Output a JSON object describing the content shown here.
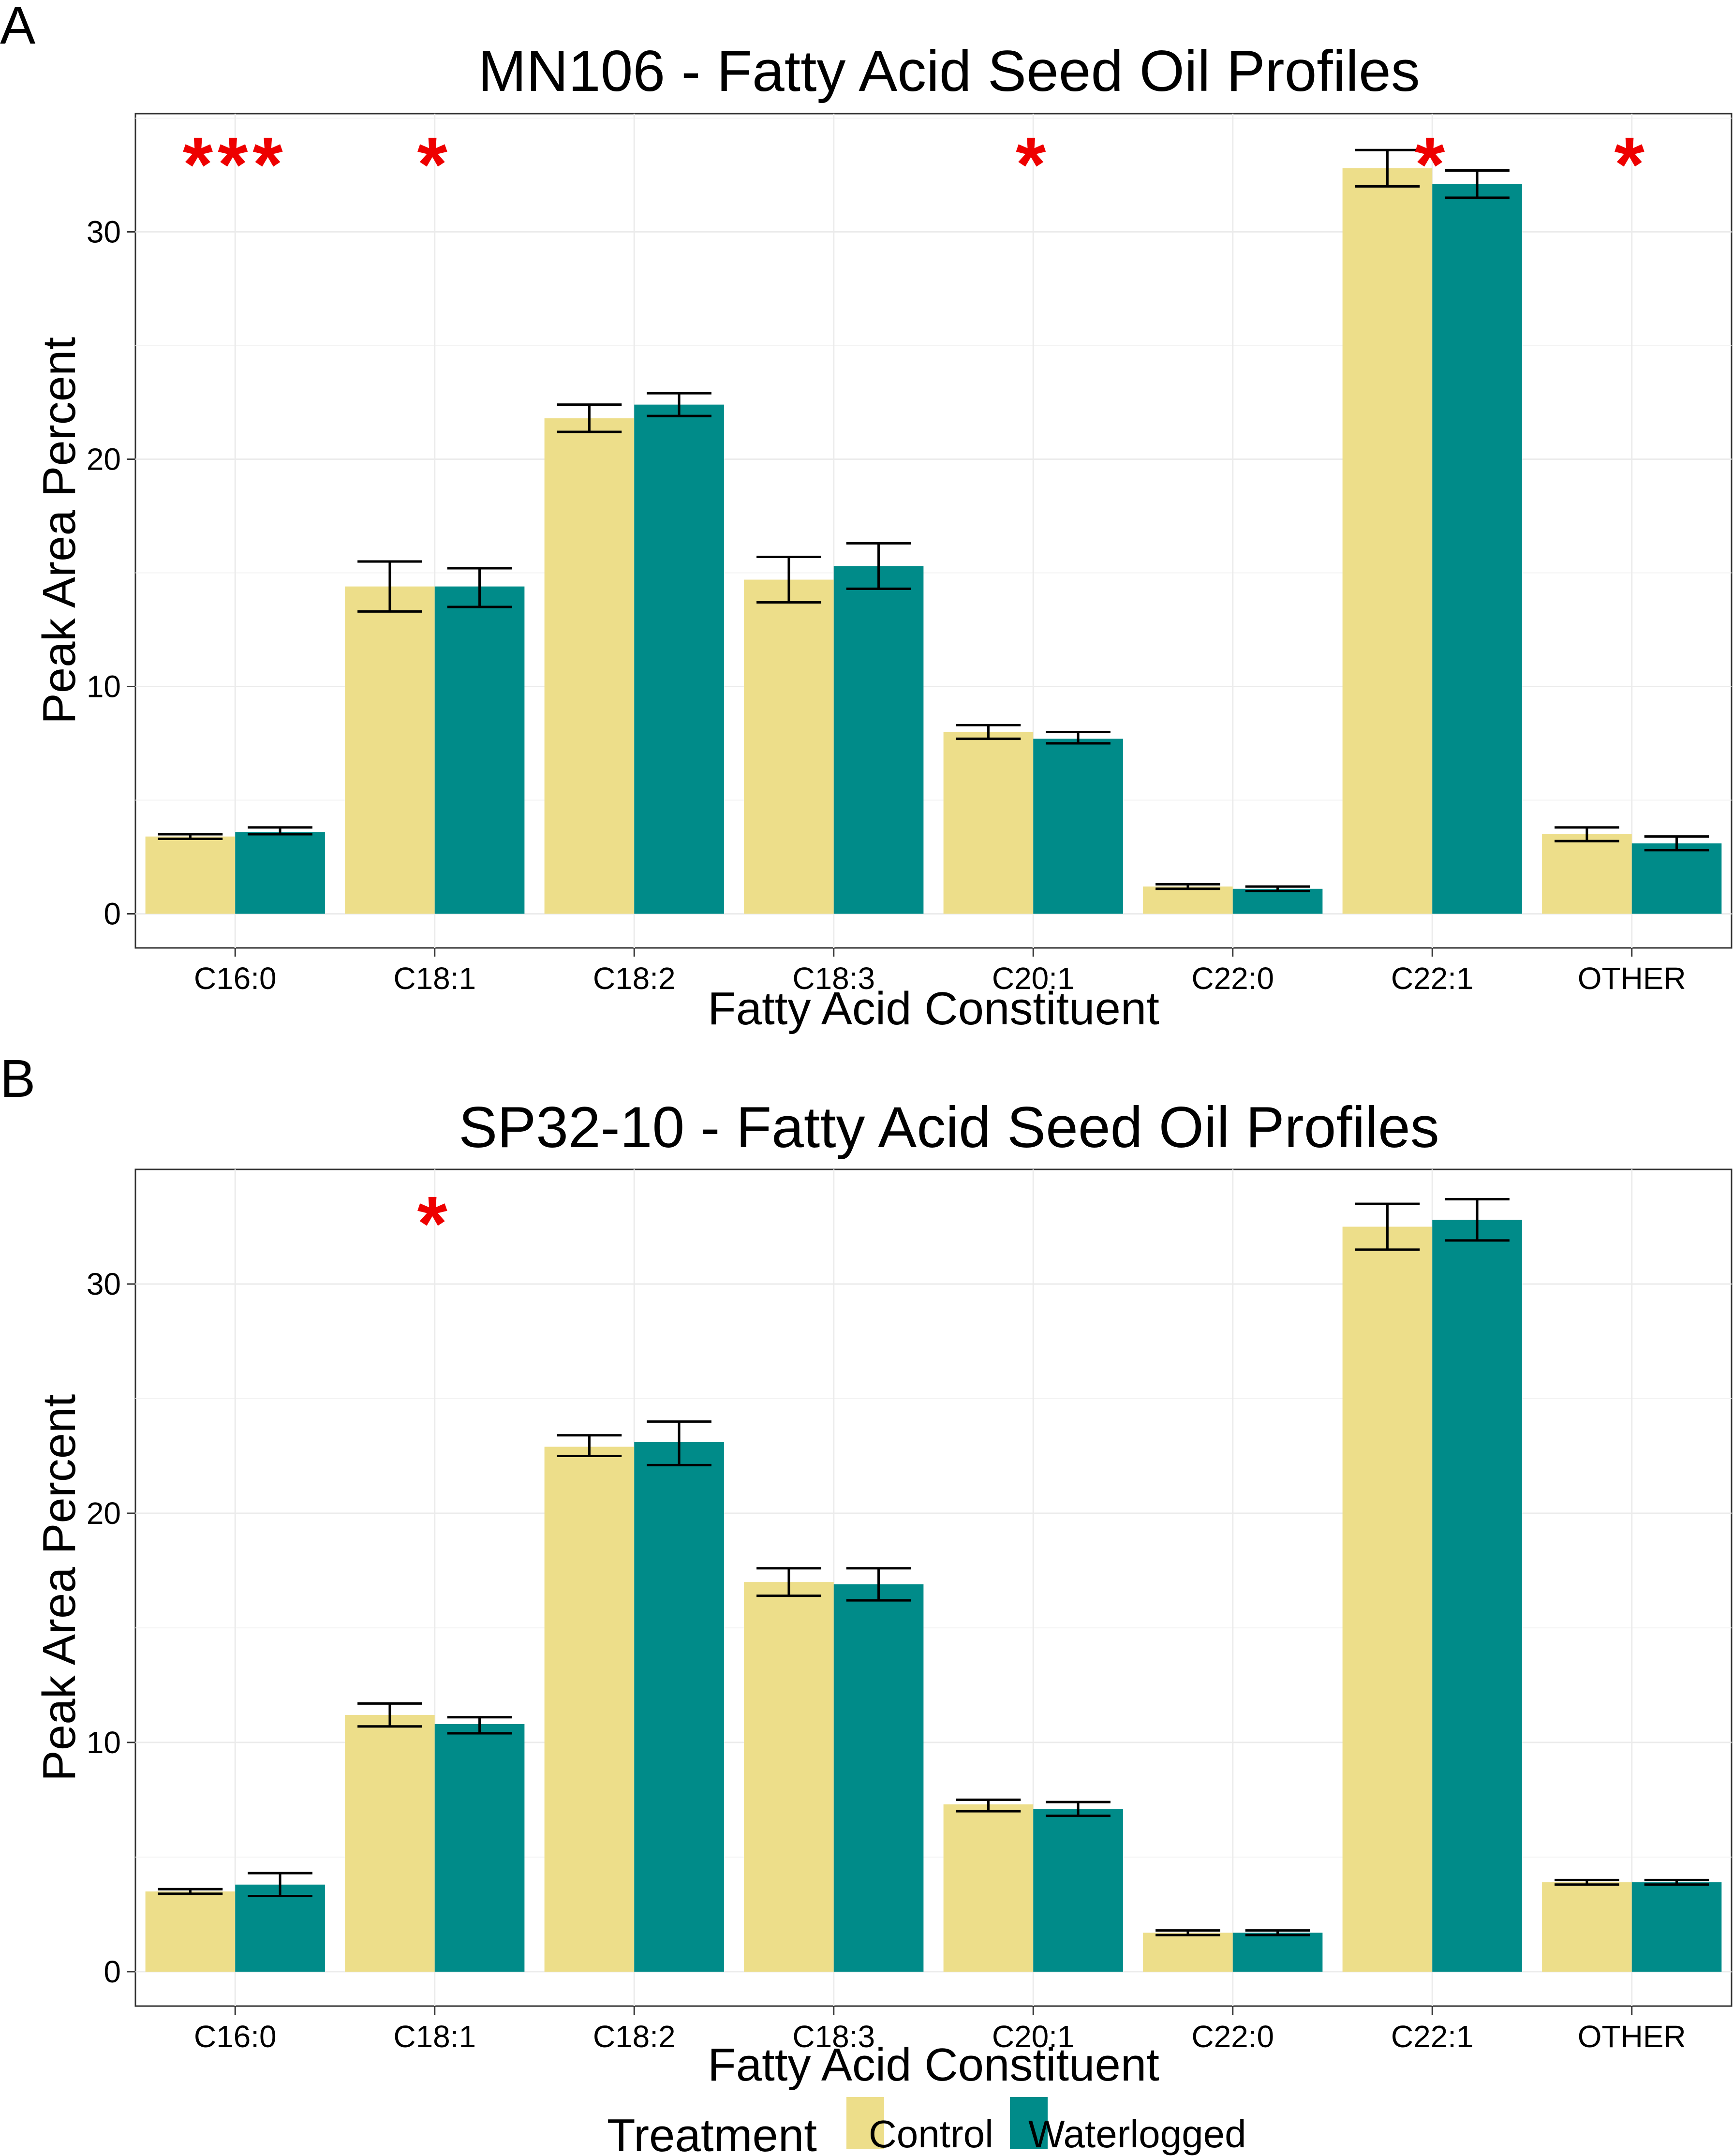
{
  "figure": {
    "legend": {
      "title": "Treatment",
      "items": [
        {
          "label": "Control",
          "color": "#EDDE8A"
        },
        {
          "label": "Waterlogged",
          "color": "#008B89"
        }
      ]
    },
    "significance_color": "#EE0000"
  },
  "chart_data": [
    {
      "panel": "A",
      "type": "bar",
      "title": "MN106 - Fatty Acid Seed Oil Profiles",
      "xlabel": "Fatty Acid Constituent",
      "ylabel": "Peak Area Percent",
      "categories": [
        "C16:0",
        "C18:1",
        "C18:2",
        "C18:3",
        "C20:1",
        "C22:0",
        "C22:1",
        "OTHER"
      ],
      "ylim": [
        -1.5,
        35.2
      ],
      "yticks": [
        0,
        10,
        20,
        30
      ],
      "series": [
        {
          "name": "Control",
          "values": [
            3.4,
            14.4,
            21.8,
            14.7,
            8.0,
            1.2,
            32.8,
            3.5
          ],
          "error_low": [
            3.3,
            13.3,
            21.2,
            13.7,
            7.7,
            1.1,
            32.0,
            3.2
          ],
          "error_high": [
            3.5,
            15.5,
            22.4,
            15.7,
            8.3,
            1.3,
            33.6,
            3.8
          ]
        },
        {
          "name": "Waterlogged",
          "values": [
            3.6,
            14.4,
            22.4,
            15.3,
            7.7,
            1.1,
            32.1,
            3.1
          ],
          "error_low": [
            3.5,
            13.5,
            21.9,
            14.3,
            7.5,
            1.0,
            31.5,
            2.8
          ],
          "error_high": [
            3.8,
            15.2,
            22.9,
            16.3,
            8.0,
            1.2,
            32.7,
            3.4
          ]
        }
      ],
      "significance": [
        "***",
        "*",
        "",
        "",
        "*",
        "",
        "*",
        "*"
      ]
    },
    {
      "panel": "B",
      "type": "bar",
      "title": "SP32-10 - Fatty Acid Seed Oil Profiles",
      "xlabel": "Fatty Acid Constituent",
      "ylabel": "Peak Area Percent",
      "categories": [
        "C16:0",
        "C18:1",
        "C18:2",
        "C18:3",
        "C20:1",
        "C22:0",
        "C22:1",
        "OTHER"
      ],
      "ylim": [
        -1.5,
        35.0
      ],
      "yticks": [
        0,
        10,
        20,
        30
      ],
      "series": [
        {
          "name": "Control",
          "values": [
            3.5,
            11.2,
            22.9,
            17.0,
            7.3,
            1.7,
            32.5,
            3.9
          ],
          "error_low": [
            3.4,
            10.7,
            22.5,
            16.4,
            7.0,
            1.6,
            31.5,
            3.8
          ],
          "error_high": [
            3.6,
            11.7,
            23.4,
            17.6,
            7.5,
            1.8,
            33.5,
            4.0
          ]
        },
        {
          "name": "Waterlogged",
          "values": [
            3.8,
            10.8,
            23.1,
            16.9,
            7.1,
            1.7,
            32.8,
            3.9
          ],
          "error_low": [
            3.3,
            10.4,
            22.1,
            16.2,
            6.8,
            1.6,
            31.9,
            3.8
          ],
          "error_high": [
            4.3,
            11.1,
            24.0,
            17.6,
            7.4,
            1.8,
            33.7,
            4.0
          ]
        }
      ],
      "significance": [
        "",
        "*",
        "",
        "",
        "",
        "",
        "",
        ""
      ]
    }
  ]
}
